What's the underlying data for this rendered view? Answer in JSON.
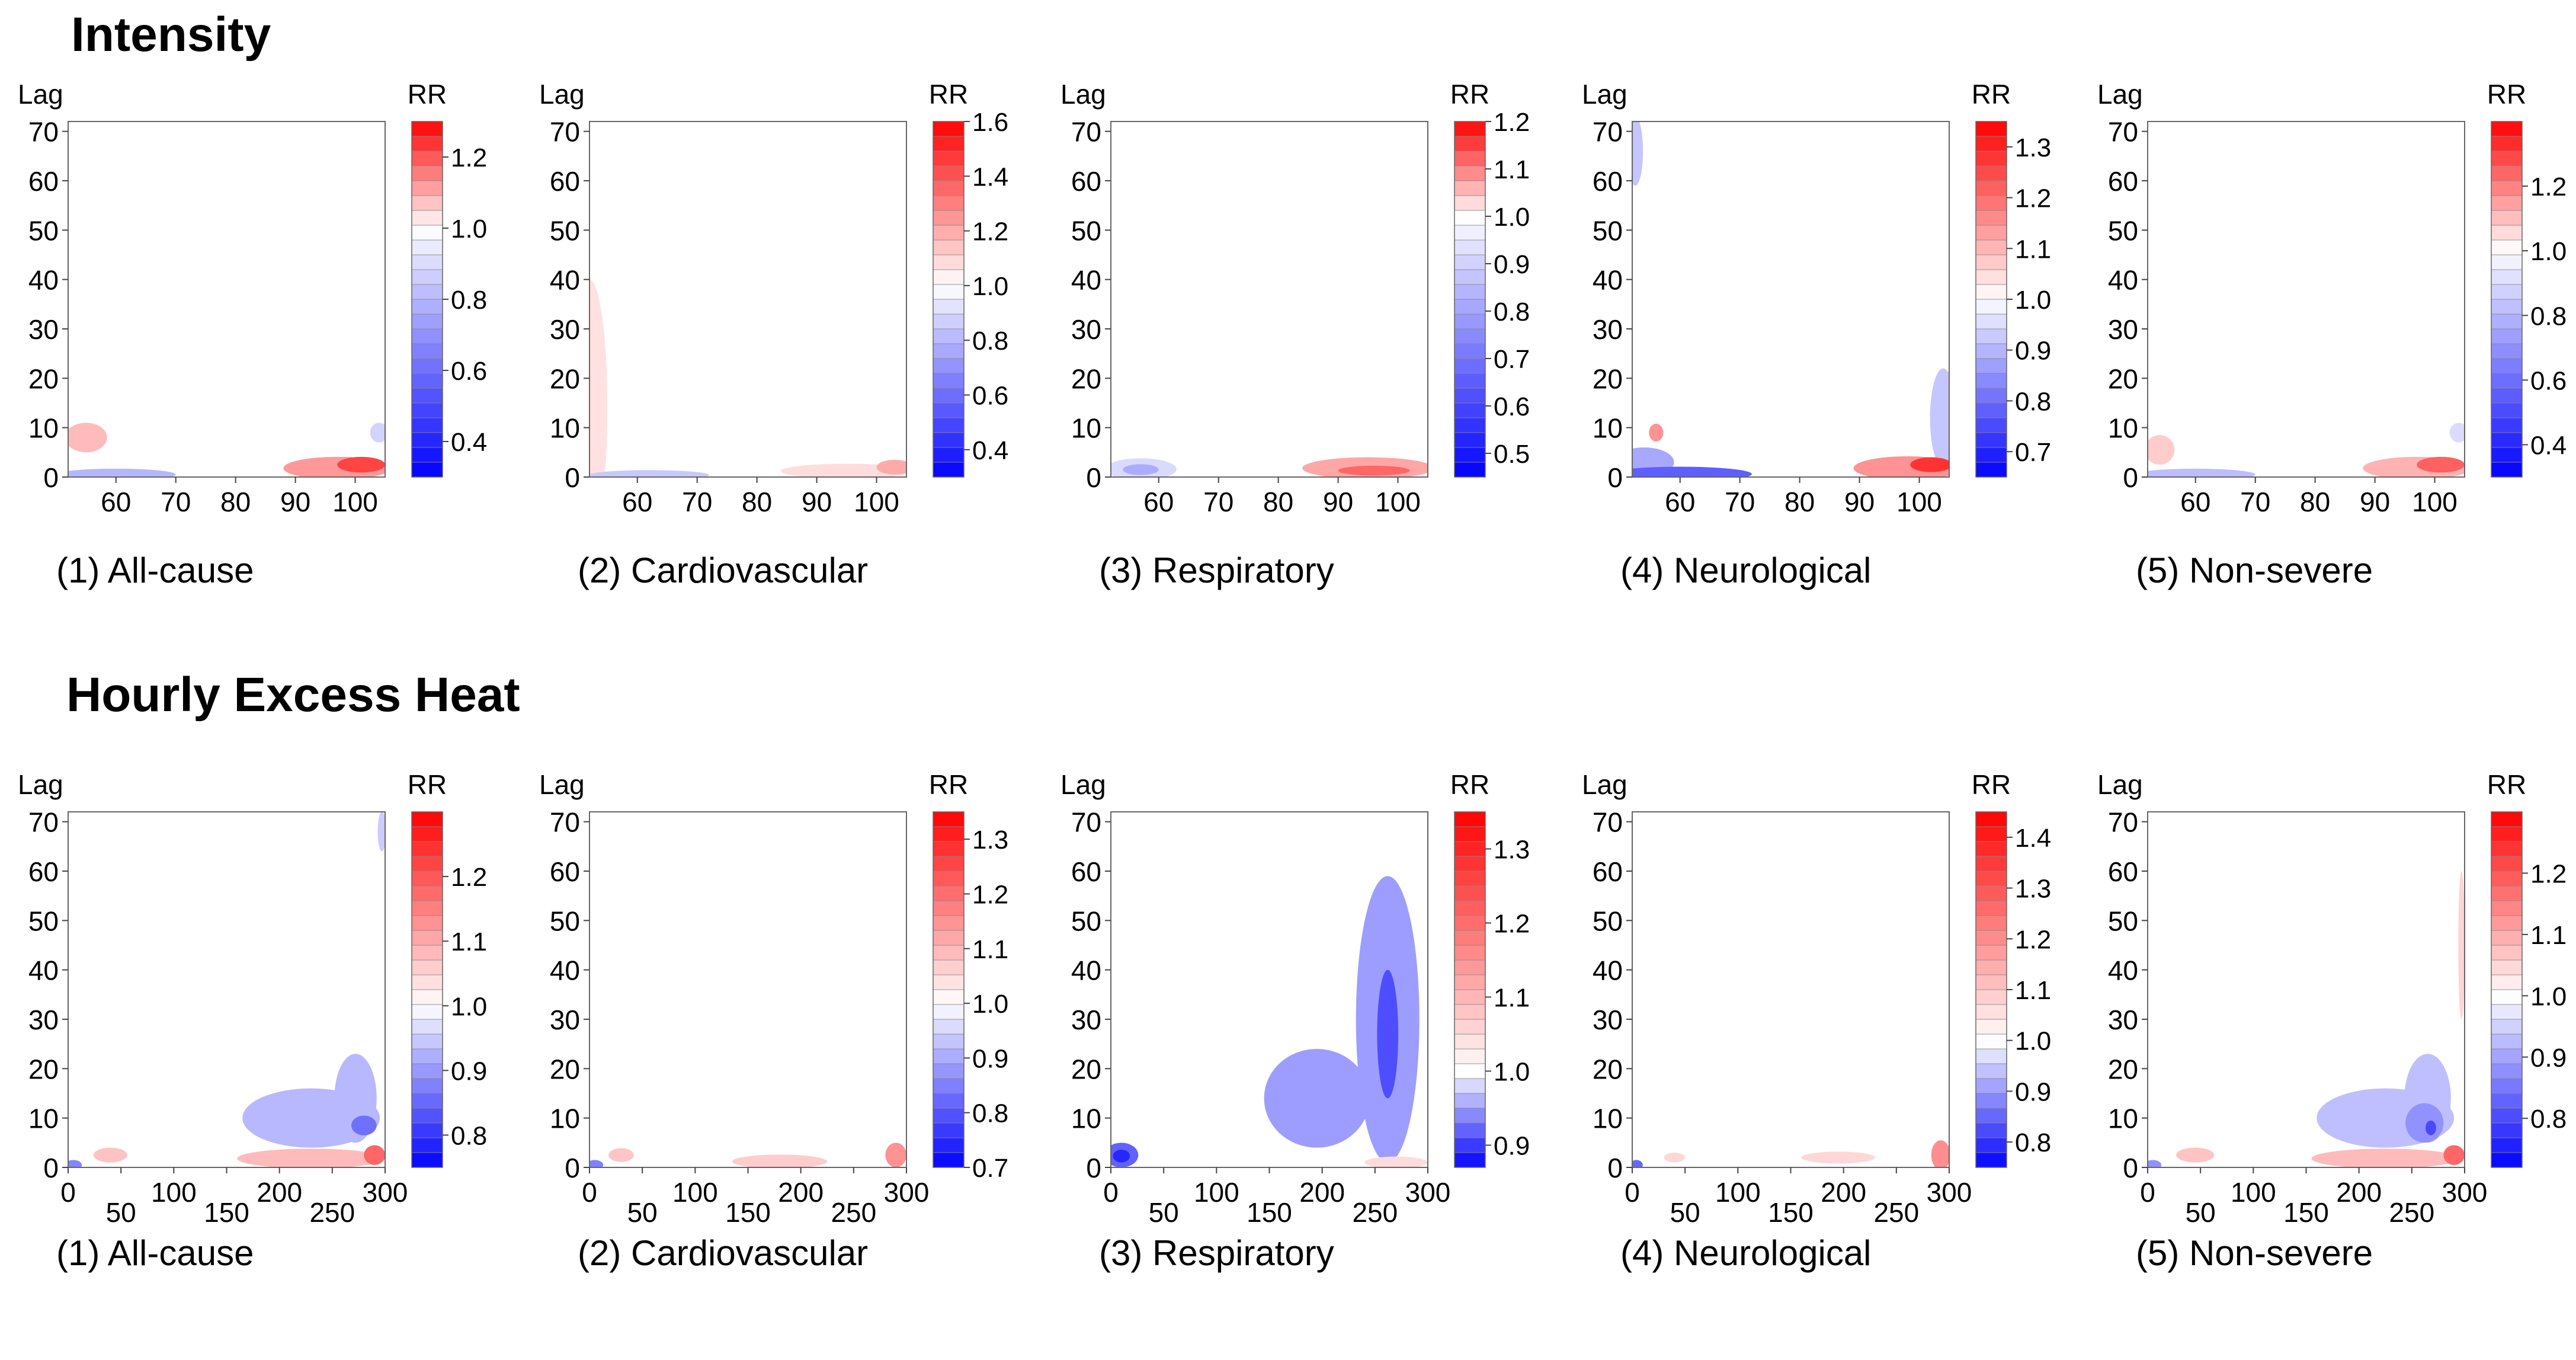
{
  "sections": [
    {
      "title": "Intensity",
      "panels": [
        {
          "caption": "(1) All-cause",
          "ylabel": "Lag",
          "cblabel": "RR",
          "xticks": [
            "60",
            "70",
            "80",
            "90",
            "100"
          ],
          "xmin": 52,
          "xmax": 105,
          "cb_min": 0.3,
          "cb_max": 1.3,
          "cb_ticks": [
            "0.4",
            "0.6",
            "0.8",
            "1.0",
            "1.2"
          ]
        },
        {
          "caption": "(2) Cardiovascular",
          "ylabel": "Lag",
          "cblabel": "RR",
          "xticks": [
            "60",
            "70",
            "80",
            "90",
            "100"
          ],
          "xmin": 52,
          "xmax": 105,
          "cb_min": 0.3,
          "cb_max": 1.6,
          "cb_ticks": [
            "0.4",
            "0.6",
            "0.8",
            "1.0",
            "1.2",
            "1.4",
            "1.6"
          ]
        },
        {
          "caption": "(3) Respiratory",
          "ylabel": "Lag",
          "cblabel": "RR",
          "xticks": [
            "60",
            "70",
            "80",
            "90",
            "100"
          ],
          "xmin": 52,
          "xmax": 105,
          "cb_min": 0.45,
          "cb_max": 1.2,
          "cb_ticks": [
            "0.5",
            "0.6",
            "0.7",
            "0.8",
            "0.9",
            "1.0",
            "1.1",
            "1.2"
          ]
        },
        {
          "caption": "(4) Neurological",
          "ylabel": "Lag",
          "cblabel": "RR",
          "xticks": [
            "60",
            "70",
            "80",
            "90",
            "100"
          ],
          "xmin": 52,
          "xmax": 105,
          "cb_min": 0.65,
          "cb_max": 1.35,
          "cb_ticks": [
            "0.7",
            "0.8",
            "0.9",
            "1.0",
            "1.1",
            "1.2",
            "1.3"
          ]
        },
        {
          "caption": "(5) Non-severe",
          "ylabel": "Lag",
          "cblabel": "RR",
          "xticks": [
            "60",
            "70",
            "80",
            "90",
            "100"
          ],
          "xmin": 52,
          "xmax": 105,
          "cb_min": 0.3,
          "cb_max": 1.4,
          "cb_ticks": [
            "0.4",
            "0.6",
            "0.8",
            "1.0",
            "1.2"
          ]
        }
      ]
    },
    {
      "title": "Hourly Excess Heat",
      "panels": [
        {
          "caption": "(1) All-cause",
          "ylabel": "Lag",
          "cblabel": "RR",
          "xticks": [
            "0",
            "50",
            "100",
            "150",
            "200",
            "250",
            "300"
          ],
          "xmin": 0,
          "xmax": 300,
          "cb_min": 0.75,
          "cb_max": 1.3,
          "cb_ticks": [
            "0.8",
            "0.9",
            "1.0",
            "1.1",
            "1.2"
          ]
        },
        {
          "caption": "(2) Cardiovascular",
          "ylabel": "Lag",
          "cblabel": "RR",
          "xticks": [
            "0",
            "50",
            "100",
            "150",
            "200",
            "250",
            "300"
          ],
          "xmin": 0,
          "xmax": 300,
          "cb_min": 0.7,
          "cb_max": 1.35,
          "cb_ticks": [
            "0.7",
            "0.8",
            "0.9",
            "1.0",
            "1.1",
            "1.2",
            "1.3"
          ]
        },
        {
          "caption": "(3) Respiratory",
          "ylabel": "Lag",
          "cblabel": "RR",
          "xticks": [
            "0",
            "50",
            "100",
            "150",
            "200",
            "250",
            "300"
          ],
          "xmin": 0,
          "xmax": 300,
          "cb_min": 0.87,
          "cb_max": 1.35,
          "cb_ticks": [
            "0.9",
            "1.0",
            "1.1",
            "1.2",
            "1.3"
          ]
        },
        {
          "caption": "(4) Neurological",
          "ylabel": "Lag",
          "cblabel": "RR",
          "xticks": [
            "0",
            "50",
            "100",
            "150",
            "200",
            "250",
            "300"
          ],
          "xmin": 0,
          "xmax": 300,
          "cb_min": 0.75,
          "cb_max": 1.45,
          "cb_ticks": [
            "0.8",
            "0.9",
            "1.0",
            "1.1",
            "1.2",
            "1.3",
            "1.4"
          ]
        },
        {
          "caption": "(5) Non-severe",
          "ylabel": "Lag",
          "cblabel": "RR",
          "xticks": [
            "0",
            "50",
            "100",
            "150",
            "200",
            "250",
            "300"
          ],
          "xmin": 0,
          "xmax": 300,
          "cb_min": 0.72,
          "cb_max": 1.3,
          "cb_ticks": [
            "0.8",
            "0.9",
            "1.0",
            "1.1",
            "1.2"
          ]
        }
      ]
    }
  ],
  "chart_data": [
    {
      "type": "heatmap",
      "group": "Intensity",
      "title": "(1) All-cause",
      "xlabel": "",
      "ylabel": "Lag",
      "colorbar_label": "RR",
      "xlim": [
        52,
        105
      ],
      "ylim": [
        0,
        72
      ],
      "yticks": [
        0,
        10,
        20,
        30,
        40,
        50,
        60,
        70
      ],
      "xticks": [
        60,
        70,
        80,
        90,
        100
      ],
      "colorbar_range": [
        0.3,
        1.3
      ],
      "colorbar_ticks": [
        0.4,
        0.6,
        0.8,
        1.0,
        1.2
      ],
      "regions": [
        {
          "x": 55,
          "lag": 8,
          "rx": 3.5,
          "rlag": 3,
          "rr": 1.08
        },
        {
          "x": 60,
          "lag": 0.5,
          "rx": 10,
          "rlag": 1.2,
          "rr": 0.8
        },
        {
          "x": 97,
          "lag": 1.8,
          "rx": 9,
          "rlag": 2.3,
          "rr": 1.12
        },
        {
          "x": 101,
          "lag": 2.5,
          "rx": 4,
          "rlag": 1.6,
          "rr": 1.22
        },
        {
          "x": 104,
          "lag": 9,
          "rx": 1.5,
          "rlag": 2,
          "rr": 0.88
        }
      ]
    },
    {
      "type": "heatmap",
      "group": "Intensity",
      "title": "(2) Cardiovascular",
      "xlabel": "",
      "ylabel": "Lag",
      "colorbar_label": "RR",
      "xlim": [
        52,
        105
      ],
      "ylim": [
        0,
        72
      ],
      "yticks": [
        0,
        10,
        20,
        30,
        40,
        50,
        60,
        70
      ],
      "xticks": [
        60,
        70,
        80,
        90,
        100
      ],
      "colorbar_range": [
        0.3,
        1.6
      ],
      "colorbar_ticks": [
        0.4,
        0.6,
        0.8,
        1.0,
        1.2,
        1.4,
        1.6
      ],
      "regions": [
        {
          "x": 52,
          "lag": 14,
          "rx": 3,
          "rlag": 26,
          "rr": 1.07
        },
        {
          "x": 62,
          "lag": 0.4,
          "rx": 10,
          "rlag": 1,
          "rr": 0.85
        },
        {
          "x": 95,
          "lag": 1.2,
          "rx": 11,
          "rlag": 1.5,
          "rr": 1.08
        },
        {
          "x": 103,
          "lag": 2,
          "rx": 3,
          "rlag": 1.5,
          "rr": 1.2
        }
      ]
    },
    {
      "type": "heatmap",
      "group": "Intensity",
      "title": "(3) Respiratory",
      "xlabel": "",
      "ylabel": "Lag",
      "colorbar_label": "RR",
      "xlim": [
        52,
        105
      ],
      "ylim": [
        0,
        72
      ],
      "yticks": [
        0,
        10,
        20,
        30,
        40,
        50,
        60,
        70
      ],
      "xticks": [
        60,
        70,
        80,
        90,
        100
      ],
      "colorbar_range": [
        0.45,
        1.2
      ],
      "colorbar_ticks": [
        0.5,
        0.6,
        0.7,
        0.8,
        0.9,
        1.0,
        1.1,
        1.2
      ],
      "regions": [
        {
          "x": 57,
          "lag": 1.6,
          "rx": 6,
          "rlag": 2.2,
          "rr": 0.92
        },
        {
          "x": 57,
          "lag": 1.5,
          "rx": 3,
          "rlag": 1.1,
          "rr": 0.82
        },
        {
          "x": 95,
          "lag": 1.8,
          "rx": 11,
          "rlag": 2.2,
          "rr": 1.07
        },
        {
          "x": 96,
          "lag": 1.3,
          "rx": 6,
          "rlag": 1,
          "rr": 1.12
        }
      ]
    },
    {
      "type": "heatmap",
      "group": "Intensity",
      "title": "(4) Neurological",
      "xlabel": "",
      "ylabel": "Lag",
      "colorbar_label": "RR",
      "xlim": [
        52,
        105
      ],
      "ylim": [
        0,
        72
      ],
      "yticks": [
        0,
        10,
        20,
        30,
        40,
        50,
        60,
        70
      ],
      "xticks": [
        60,
        70,
        80,
        90,
        100
      ],
      "colorbar_range": [
        0.65,
        1.35
      ],
      "colorbar_ticks": [
        0.7,
        0.8,
        0.9,
        1.0,
        1.1,
        1.2,
        1.3
      ],
      "regions": [
        {
          "x": 52.5,
          "lag": 66,
          "rx": 1.3,
          "rlag": 7,
          "rr": 0.92
        },
        {
          "x": 56,
          "lag": 9,
          "rx": 1.2,
          "rlag": 1.8,
          "rr": 1.15
        },
        {
          "x": 54,
          "lag": 3,
          "rx": 5,
          "rlag": 3,
          "rr": 0.88
        },
        {
          "x": 60,
          "lag": 0.6,
          "rx": 12,
          "rlag": 1.5,
          "rr": 0.78
        },
        {
          "x": 104,
          "lag": 12,
          "rx": 2.2,
          "rlag": 10,
          "rr": 0.92
        },
        {
          "x": 98,
          "lag": 1.8,
          "rx": 9,
          "rlag": 2.4,
          "rr": 1.15
        },
        {
          "x": 102,
          "lag": 2.5,
          "rx": 3.5,
          "rlag": 1.5,
          "rr": 1.28
        }
      ]
    },
    {
      "type": "heatmap",
      "group": "Intensity",
      "title": "(5) Non-severe",
      "xlabel": "",
      "ylabel": "Lag",
      "colorbar_label": "RR",
      "xlim": [
        52,
        105
      ],
      "ylim": [
        0,
        72
      ],
      "yticks": [
        0,
        10,
        20,
        30,
        40,
        50,
        60,
        70
      ],
      "xticks": [
        60,
        70,
        80,
        90,
        100
      ],
      "colorbar_range": [
        0.3,
        1.4
      ],
      "colorbar_ticks": [
        0.4,
        0.6,
        0.8,
        1.0,
        1.2
      ],
      "regions": [
        {
          "x": 54,
          "lag": 5.5,
          "rx": 2.5,
          "rlag": 3,
          "rr": 1.08
        },
        {
          "x": 60,
          "lag": 0.5,
          "rx": 10,
          "rlag": 1.2,
          "rr": 0.82
        },
        {
          "x": 97,
          "lag": 1.8,
          "rx": 9,
          "rlag": 2.3,
          "rr": 1.12
        },
        {
          "x": 101,
          "lag": 2.5,
          "rx": 4,
          "rlag": 1.6,
          "rr": 1.25
        },
        {
          "x": 104,
          "lag": 9,
          "rx": 1.5,
          "rlag": 2,
          "rr": 0.9
        }
      ]
    },
    {
      "type": "heatmap",
      "group": "Hourly Excess Heat",
      "title": "(1) All-cause",
      "xlabel": "",
      "ylabel": "Lag",
      "colorbar_label": "RR",
      "xlim": [
        0,
        300
      ],
      "ylim": [
        0,
        72
      ],
      "yticks": [
        0,
        10,
        20,
        30,
        40,
        50,
        60,
        70
      ],
      "xticks": [
        0,
        50,
        100,
        150,
        200,
        250,
        300
      ],
      "colorbar_range": [
        0.75,
        1.3
      ],
      "colorbar_ticks": [
        0.8,
        0.9,
        1.0,
        1.1,
        1.2
      ],
      "regions": [
        {
          "x": 230,
          "lag": 10,
          "rx": 65,
          "rlag": 6,
          "rr": 0.93
        },
        {
          "x": 272,
          "lag": 14,
          "rx": 20,
          "rlag": 9,
          "rr": 0.93
        },
        {
          "x": 280,
          "lag": 8.5,
          "rx": 12,
          "rlag": 2,
          "rr": 0.86
        },
        {
          "x": 297,
          "lag": 68,
          "rx": 4,
          "rlag": 4,
          "rr": 0.95
        },
        {
          "x": 40,
          "lag": 2.5,
          "rx": 16,
          "rlag": 1.5,
          "rr": 1.07
        },
        {
          "x": 230,
          "lag": 1.8,
          "rx": 70,
          "rlag": 2,
          "rr": 1.08
        },
        {
          "x": 290,
          "lag": 2.5,
          "rx": 10,
          "rlag": 2,
          "rr": 1.18
        },
        {
          "x": 5,
          "lag": 0.5,
          "rx": 8,
          "rlag": 1,
          "rr": 0.88
        }
      ]
    },
    {
      "type": "heatmap",
      "group": "Hourly Excess Heat",
      "title": "(2) Cardiovascular",
      "xlabel": "",
      "ylabel": "Lag",
      "colorbar_label": "RR",
      "xlim": [
        0,
        300
      ],
      "ylim": [
        0,
        72
      ],
      "yticks": [
        0,
        10,
        20,
        30,
        40,
        50,
        60,
        70
      ],
      "xticks": [
        0,
        50,
        100,
        150,
        200,
        250,
        300
      ],
      "colorbar_range": [
        0.7,
        1.35
      ],
      "colorbar_ticks": [
        0.7,
        0.8,
        0.9,
        1.0,
        1.1,
        1.2,
        1.3
      ],
      "regions": [
        {
          "x": 30,
          "lag": 2.5,
          "rx": 12,
          "rlag": 1.4,
          "rr": 1.08
        },
        {
          "x": 180,
          "lag": 1.2,
          "rx": 45,
          "rlag": 1.4,
          "rr": 1.07
        },
        {
          "x": 290,
          "lag": 2.5,
          "rx": 10,
          "rlag": 2.5,
          "rr": 1.15
        },
        {
          "x": 5,
          "lag": 0.5,
          "rx": 8,
          "rlag": 1,
          "rr": 0.85
        }
      ]
    },
    {
      "type": "heatmap",
      "group": "Hourly Excess Heat",
      "title": "(3) Respiratory",
      "xlabel": "",
      "ylabel": "Lag",
      "colorbar_label": "RR",
      "xlim": [
        0,
        300
      ],
      "ylim": [
        0,
        72
      ],
      "yticks": [
        0,
        10,
        20,
        30,
        40,
        50,
        60,
        70
      ],
      "xticks": [
        0,
        50,
        100,
        150,
        200,
        250,
        300
      ],
      "colorbar_range": [
        0.87,
        1.35
      ],
      "colorbar_ticks": [
        0.9,
        1.0,
        1.1,
        1.2,
        1.3
      ],
      "regions": [
        {
          "x": 195,
          "lag": 14,
          "rx": 50,
          "rlag": 10,
          "rr": 0.95
        },
        {
          "x": 262,
          "lag": 30,
          "rx": 30,
          "rlag": 29,
          "rr": 0.95
        },
        {
          "x": 262,
          "lag": 27,
          "rx": 10,
          "rlag": 13,
          "rr": 0.91
        },
        {
          "x": 10,
          "lag": 2.5,
          "rx": 16,
          "rlag": 2.5,
          "rr": 0.92
        },
        {
          "x": 10,
          "lag": 2.3,
          "rx": 8,
          "rlag": 1.3,
          "rr": 0.89
        },
        {
          "x": 270,
          "lag": 1,
          "rx": 30,
          "rlag": 1.2,
          "rr": 1.05
        }
      ]
    },
    {
      "type": "heatmap",
      "group": "Hourly Excess Heat",
      "title": "(4) Neurological",
      "xlabel": "",
      "ylabel": "Lag",
      "colorbar_label": "RR",
      "xlim": [
        0,
        300
      ],
      "ylim": [
        0,
        72
      ],
      "yticks": [
        0,
        10,
        20,
        30,
        40,
        50,
        60,
        70
      ],
      "xticks": [
        0,
        50,
        100,
        150,
        200,
        250,
        300
      ],
      "colorbar_range": [
        0.75,
        1.45
      ],
      "colorbar_ticks": [
        0.8,
        0.9,
        1.0,
        1.1,
        1.2,
        1.3,
        1.4
      ],
      "regions": [
        {
          "x": 40,
          "lag": 2,
          "rx": 10,
          "rlag": 1,
          "rr": 1.07
        },
        {
          "x": 195,
          "lag": 2,
          "rx": 35,
          "rlag": 1.2,
          "rr": 1.07
        },
        {
          "x": 292,
          "lag": 2.5,
          "rx": 9,
          "rlag": 3,
          "rr": 1.2
        },
        {
          "x": 4,
          "lag": 0.5,
          "rx": 6,
          "rlag": 1,
          "rr": 0.85
        }
      ]
    },
    {
      "type": "heatmap",
      "group": "Hourly Excess Heat",
      "title": "(5) Non-severe",
      "xlabel": "",
      "ylabel": "Lag",
      "colorbar_label": "RR",
      "xlim": [
        0,
        300
      ],
      "ylim": [
        0,
        72
      ],
      "yticks": [
        0,
        10,
        20,
        30,
        40,
        50,
        60,
        70
      ],
      "xticks": [
        0,
        50,
        100,
        150,
        200,
        250,
        300
      ],
      "colorbar_range": [
        0.72,
        1.3
      ],
      "colorbar_ticks": [
        0.8,
        0.9,
        1.0,
        1.1,
        1.2
      ],
      "regions": [
        {
          "x": 225,
          "lag": 10,
          "rx": 65,
          "rlag": 6,
          "rr": 0.93
        },
        {
          "x": 265,
          "lag": 14,
          "rx": 22,
          "rlag": 9,
          "rr": 0.93
        },
        {
          "x": 262,
          "lag": 9,
          "rx": 18,
          "rlag": 4,
          "rr": 0.88
        },
        {
          "x": 268,
          "lag": 8,
          "rx": 5,
          "rlag": 1.5,
          "rr": 0.8
        },
        {
          "x": 297,
          "lag": 45,
          "rx": 3,
          "rlag": 15,
          "rr": 1.05
        },
        {
          "x": 45,
          "lag": 2.5,
          "rx": 18,
          "rlag": 1.5,
          "rr": 1.07
        },
        {
          "x": 225,
          "lag": 1.8,
          "rx": 70,
          "rlag": 2,
          "rr": 1.08
        },
        {
          "x": 290,
          "lag": 2.5,
          "rx": 10,
          "rlag": 2,
          "rr": 1.18
        },
        {
          "x": 5,
          "lag": 0.5,
          "rx": 8,
          "rlag": 1,
          "rr": 0.88
        }
      ]
    }
  ]
}
